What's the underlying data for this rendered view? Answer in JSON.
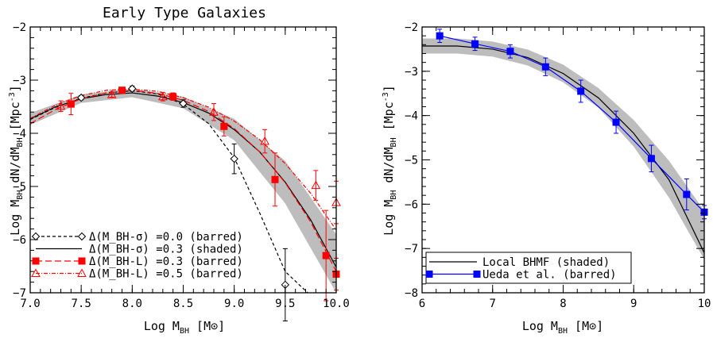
{
  "chart_data": [
    {
      "type": "line",
      "title": "Early Type Galaxies",
      "xlabel": "Log M_BH [M_sun]",
      "ylabel": "Log M_BH dN/dM_BH [Mpc^-3]",
      "xlim": [
        7.0,
        10.0
      ],
      "ylim": [
        -7.0,
        -2.0
      ],
      "xticks": [
        7.0,
        7.5,
        8.0,
        8.5,
        9.0,
        9.5,
        10.0
      ],
      "xtick_labels": [
        "7.0",
        "7.5",
        "8.0",
        "8.5",
        "9.0",
        "9.5",
        "10.0"
      ],
      "yticks": [
        -2,
        -3,
        -4,
        -5,
        -6,
        -7
      ],
      "ytick_labels": [
        "-2",
        "-3",
        "-4",
        "-5",
        "-6",
        "-7"
      ],
      "legend_position": "bottom-left",
      "band": {
        "x": [
          7.0,
          7.5,
          8.0,
          8.5,
          9.0,
          9.5,
          10.0
        ],
        "upper": [
          -3.62,
          -3.27,
          -3.16,
          -3.31,
          -3.73,
          -4.52,
          -5.9
        ],
        "lower": [
          -3.84,
          -3.43,
          -3.32,
          -3.53,
          -4.13,
          -5.32,
          -7.0
        ]
      },
      "series": [
        {
          "name": "Δ(M_BH-σ) =0.0 (barred)",
          "color": "#000000",
          "dash": "4,3",
          "marker": "diamond",
          "line_x": [
            7.0,
            7.25,
            7.5,
            7.75,
            8.0,
            8.25,
            8.5,
            8.75,
            9.0,
            9.25,
            9.5,
            9.72
          ],
          "line_y": [
            -3.74,
            -3.51,
            -3.34,
            -3.24,
            -3.2,
            -3.26,
            -3.45,
            -3.82,
            -4.46,
            -5.5,
            -6.6,
            -7.0
          ],
          "x": [
            7.5,
            8.0,
            8.5,
            9.0,
            9.5
          ],
          "y": [
            -3.33,
            -3.16,
            -3.44,
            -4.48,
            -6.85
          ],
          "err": [
            0.04,
            0.05,
            0.07,
            0.28,
            0.68
          ]
        },
        {
          "name": "Δ(M_BH-σ) =0.3 (shaded)",
          "color": "#000000",
          "dash": "",
          "marker": "none",
          "line_x": [
            7.0,
            7.25,
            7.5,
            7.75,
            8.0,
            8.25,
            8.5,
            8.75,
            9.0,
            9.25,
            9.5,
            9.75,
            10.0
          ],
          "line_y": [
            -3.73,
            -3.5,
            -3.35,
            -3.27,
            -3.24,
            -3.3,
            -3.42,
            -3.62,
            -3.93,
            -4.35,
            -4.92,
            -5.63,
            -6.52
          ]
        },
        {
          "name": "Δ(M_BH-L) =0.3 (barred)",
          "color": "#ff0000",
          "dash": "8,4",
          "marker": "square-filled",
          "line_x": [
            7.0,
            7.25,
            7.5,
            7.75,
            8.0,
            8.25,
            8.5,
            8.75,
            9.0,
            9.25,
            9.5,
            9.75,
            10.0
          ],
          "line_y": [
            -3.82,
            -3.55,
            -3.35,
            -3.24,
            -3.19,
            -3.25,
            -3.38,
            -3.59,
            -3.91,
            -4.35,
            -4.93,
            -5.67,
            -6.6
          ],
          "x": [
            7.4,
            7.9,
            8.4,
            8.9,
            9.4,
            9.9,
            10.0
          ],
          "y": [
            -3.45,
            -3.19,
            -3.31,
            -3.87,
            -4.87,
            -6.3,
            -6.65
          ],
          "err": [
            0.2,
            0.05,
            0.07,
            0.18,
            0.5,
            0.85,
            0.3
          ]
        },
        {
          "name": "Δ(M_BH-L) =0.5 (barred)",
          "color": "#ff0000",
          "dash": "5,2,1,2",
          "marker": "triangle-open",
          "line_x": [
            7.0,
            7.25,
            7.5,
            7.75,
            8.0,
            8.25,
            8.5,
            8.75,
            9.0,
            9.25,
            9.5,
            9.75,
            10.0
          ],
          "line_y": [
            -3.72,
            -3.47,
            -3.29,
            -3.19,
            -3.17,
            -3.21,
            -3.33,
            -3.51,
            -3.77,
            -4.12,
            -4.57,
            -5.13,
            -5.82
          ],
          "x": [
            7.3,
            7.8,
            8.3,
            8.8,
            9.3,
            9.8,
            10.0
          ],
          "y": [
            -3.49,
            -3.27,
            -3.31,
            -3.6,
            -4.15,
            -4.98,
            -5.3
          ],
          "err": [
            0.1,
            0.05,
            0.08,
            0.16,
            0.22,
            0.28,
            0.4
          ]
        }
      ]
    },
    {
      "type": "line",
      "title": "",
      "xlabel": "Log M_BH [M_sun]",
      "ylabel": "Log M_BH dN/dM_BH [Mpc^-3]",
      "xlim": [
        6,
        10
      ],
      "ylim": [
        -8,
        -2
      ],
      "xticks": [
        6,
        7,
        8,
        9,
        10
      ],
      "xtick_labels": [
        "6",
        "7",
        "8",
        "9",
        "10"
      ],
      "yticks": [
        -2,
        -3,
        -4,
        -5,
        -6,
        -7,
        -8
      ],
      "ytick_labels": [
        "-2",
        "-3",
        "-4",
        "-5",
        "-6",
        "-7",
        "-8"
      ],
      "legend_position": "bottom-left",
      "band": {
        "x": [
          6.0,
          6.5,
          7.0,
          7.5,
          8.0,
          8.5,
          9.0,
          9.5,
          10.0
        ],
        "upper": [
          -2.26,
          -2.26,
          -2.33,
          -2.51,
          -2.85,
          -3.38,
          -4.1,
          -5.02,
          -6.15
        ],
        "lower": [
          -2.6,
          -2.6,
          -2.67,
          -2.87,
          -3.25,
          -3.82,
          -4.7,
          -5.85,
          -7.25
        ]
      },
      "series": [
        {
          "name": "Local BHMF (shaded)",
          "color": "#000000",
          "dash": "",
          "marker": "none",
          "line_x": [
            6.0,
            6.5,
            7.0,
            7.5,
            8.0,
            8.5,
            9.0,
            9.5,
            10.0
          ],
          "line_y": [
            -2.43,
            -2.43,
            -2.5,
            -2.69,
            -3.05,
            -3.6,
            -4.4,
            -5.45,
            -7.1
          ]
        },
        {
          "name": "Ueda et al. (barred)",
          "color": "#0000ff",
          "dash": "",
          "marker": "square-filled",
          "x": [
            6.25,
            6.75,
            7.25,
            7.75,
            8.25,
            8.75,
            9.25,
            9.75,
            10.0
          ],
          "y": [
            -2.2,
            -2.38,
            -2.55,
            -2.9,
            -3.45,
            -4.15,
            -4.97,
            -5.78,
            -6.18
          ],
          "err": [
            0.15,
            0.15,
            0.15,
            0.2,
            0.25,
            0.25,
            0.3,
            0.35,
            0.15
          ]
        }
      ]
    }
  ]
}
